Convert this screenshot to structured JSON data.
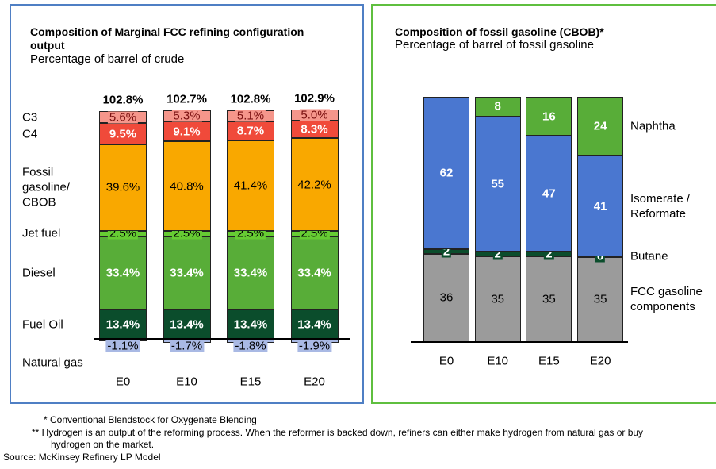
{
  "chart_data": [
    {
      "type": "stacked_bar",
      "title": "Composition of Marginal FCC refining configuration output",
      "subtitle": "Percentage of barrel of crude",
      "categories": [
        "E0",
        "E10",
        "E15",
        "E20"
      ],
      "series": [
        {
          "name": "Natural gas",
          "color": "#a9b9e4",
          "label_color": "#000000",
          "values": [
            -1.1,
            -1.7,
            -1.8,
            -1.9
          ],
          "value_labels": [
            "-1.1%",
            "-1.7%",
            "-1.8%",
            "-1.9%"
          ]
        },
        {
          "name": "Fuel Oil",
          "color": "#0b4d2c",
          "label_color": "#ffffff",
          "values": [
            13.4,
            13.4,
            13.4,
            13.4
          ],
          "value_labels": [
            "13.4%",
            "13.4%",
            "13.4%",
            "13.4%"
          ]
        },
        {
          "name": "Diesel",
          "color": "#58ad38",
          "label_color": "#ffffff",
          "values": [
            33.4,
            33.4,
            33.4,
            33.4
          ],
          "value_labels": [
            "33.4%",
            "33.4%",
            "33.4%",
            "33.4%"
          ]
        },
        {
          "name": "Jet fuel",
          "color": "#66cc33",
          "label_color": "#000000",
          "values": [
            2.5,
            2.5,
            2.5,
            2.5
          ],
          "value_labels": [
            "2.5%",
            "2.5%",
            "2.5%",
            "2.5%"
          ]
        },
        {
          "name": "Fossil gasoline/ CBOB",
          "color": "#f9a800",
          "label_color": "#000000",
          "values": [
            39.6,
            40.8,
            41.4,
            42.2
          ],
          "value_labels": [
            "39.6%",
            "40.8%",
            "41.4%",
            "42.2%"
          ]
        },
        {
          "name": "C4",
          "color": "#f04a3a",
          "label_color": "#ffffff",
          "values": [
            9.5,
            9.1,
            8.7,
            8.3
          ],
          "value_labels": [
            "9.5%",
            "9.1%",
            "8.7%",
            "8.3%"
          ]
        },
        {
          "name": "C3",
          "color": "#f5968b",
          "label_color": "#7a1010",
          "values": [
            5.6,
            5.3,
            5.1,
            5.0
          ],
          "value_labels": [
            "5.6%",
            "5.3%",
            "5.1%",
            "5.0%"
          ]
        }
      ],
      "totals": {
        "values": [
          102.8,
          102.7,
          102.8,
          102.9
        ],
        "value_labels": [
          "102.8%",
          "102.7%",
          "102.8%",
          "102.9%"
        ]
      }
    },
    {
      "type": "stacked_bar",
      "title": "Composition of fossil gasoline (CBOB)*",
      "subtitle": "Percentage of barrel of fossil gasoline",
      "categories": [
        "E0",
        "E10",
        "E15",
        "E20"
      ],
      "series": [
        {
          "name": "FCC gasoline components",
          "color": "#9b9b9b",
          "label_color": "#000000",
          "values": [
            36,
            35,
            35,
            35
          ]
        },
        {
          "name": "Butane",
          "color": "#0b4d2c",
          "label_color": "#ffffff",
          "values": [
            2,
            2,
            2,
            0
          ]
        },
        {
          "name": "Isomerate / Reformate",
          "color": "#4a77d0",
          "label_color": "#ffffff",
          "values": [
            62,
            55,
            47,
            41
          ]
        },
        {
          "name": "Naphtha",
          "color": "#58ad38",
          "label_color": "#ffffff",
          "values": [
            null,
            8,
            16,
            24
          ]
        }
      ]
    }
  ],
  "footnotes": [
    "* Conventional Blendstock for Oxygenate Blending",
    "** Hydrogen is an output of the reforming process.  When the reformer is backed down, refiners can either make hydrogen from natural gas or buy hydrogen on the market."
  ],
  "source": "Source: McKinsey Refinery LP Model"
}
